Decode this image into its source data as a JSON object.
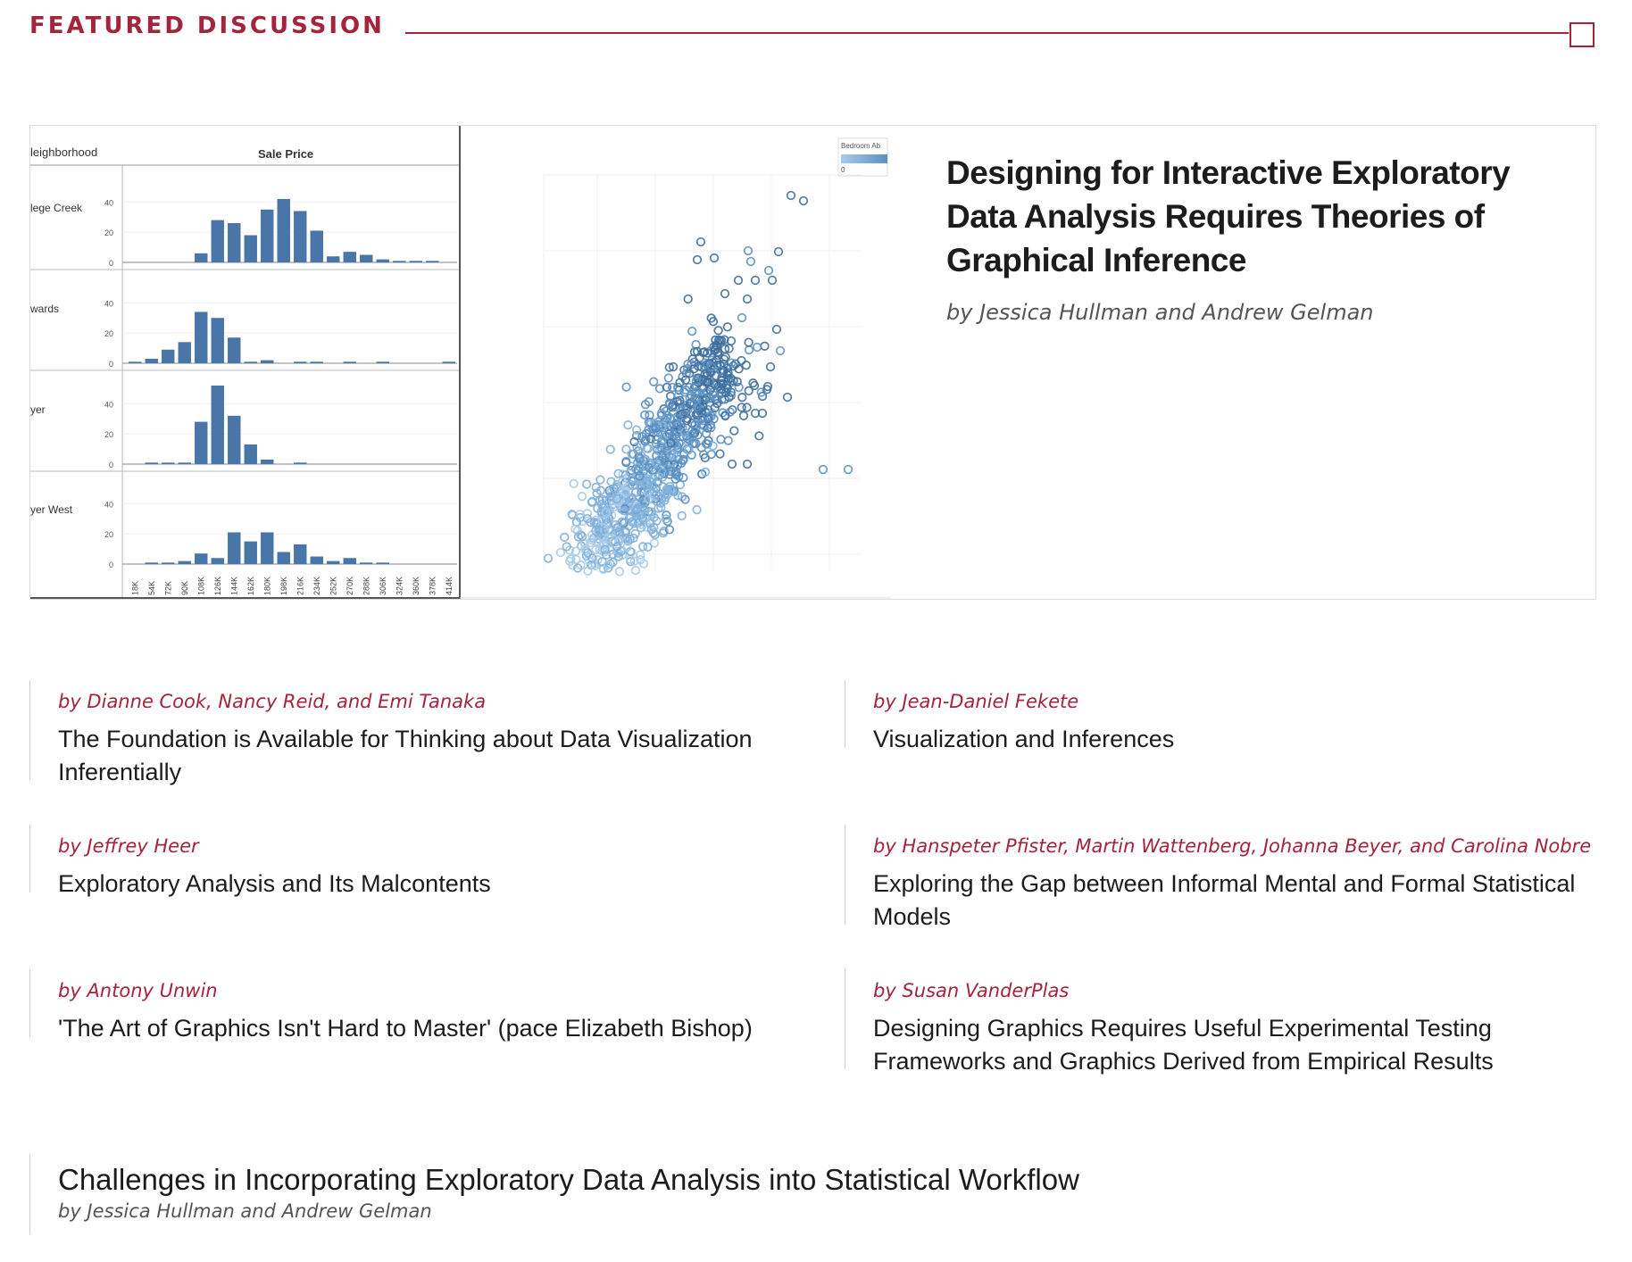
{
  "section": {
    "title": "FEATURED DISCUSSION"
  },
  "featured": {
    "title": "Designing for Interactive Exploratory Data Analysis Requires Theories of Graphical Inference",
    "byline": "by Jessica Hullman and Andrew Gelman",
    "figure": {
      "left_panel": {
        "column_header_left": "leighborhood",
        "column_header_right": "Sale Price",
        "rows": [
          {
            "label": "lege Creek",
            "y_ticks": [
              "40",
              "20",
              "0"
            ],
            "values": [
              0,
              0,
              0,
              0,
              6,
              28,
              26,
              18,
              35,
              42,
              34,
              21,
              4,
              7,
              5,
              2,
              1,
              1,
              1,
              0
            ]
          },
          {
            "label": "wards",
            "y_ticks": [
              "40",
              "20",
              "0"
            ],
            "values": [
              1,
              3,
              9,
              14,
              34,
              30,
              17,
              1,
              2,
              0,
              1,
              1,
              0,
              1,
              0,
              1,
              0,
              0,
              0,
              1
            ]
          },
          {
            "label": "yer",
            "y_ticks": [
              "40",
              "20",
              "0"
            ],
            "values": [
              0,
              1,
              1,
              1,
              28,
              52,
              32,
              13,
              3,
              0,
              1,
              0,
              0,
              0,
              0,
              0,
              0,
              0,
              0,
              0
            ]
          },
          {
            "label": "yer West",
            "y_ticks": [
              "40",
              "20",
              "0"
            ],
            "values": [
              0,
              1,
              1,
              2,
              7,
              4,
              21,
              15,
              21,
              8,
              13,
              5,
              2,
              4,
              1,
              1,
              0,
              0,
              0,
              0
            ]
          }
        ],
        "x_ticks": [
          "18K",
          "54K",
          "72K",
          "90K",
          "108K",
          "126K",
          "144K",
          "162K",
          "180K",
          "198K",
          "216K",
          "234K",
          "252K",
          "270K",
          "288K",
          "306K",
          "324K",
          "360K",
          "378K",
          "414K"
        ]
      },
      "right_panel": {
        "legend_title": "Bedroom Ab",
        "legend_value": "0",
        "colors": [
          "#a8cbe8",
          "#7fb0da",
          "#5b90c2",
          "#3e6f9e"
        ]
      },
      "bar_color": "#4a75a8"
    }
  },
  "articles": [
    {
      "byline": "by Dianne Cook, Nancy Reid, and Emi Tanaka",
      "title": "The Foundation is Available for Thinking about Data Visualization Inferentially"
    },
    {
      "byline": "by Jean-Daniel Fekete",
      "title": "Visualization and Inferences"
    },
    {
      "byline": "by Jeffrey Heer",
      "title": "Exploratory Analysis and Its Malcontents"
    },
    {
      "byline": "by Hanspeter Pfister, Martin Wattenberg, Johanna Beyer, and Carolina Nobre",
      "title": "Exploring the Gap between Informal Mental and Formal Statistical Models"
    },
    {
      "byline": "by Antony Unwin",
      "title": "'The Art of Graphics Isn't Hard to Master' (pace Elizabeth Bishop)"
    },
    {
      "byline": "by Susan VanderPlas",
      "title": "Designing Graphics Requires Useful Experimental Testing Frameworks and Graphics Derived from Empirical Results"
    }
  ],
  "last_article": {
    "title": "Challenges in Incorporating Exploratory Data Analysis into Statistical Workflow",
    "byline": "by Jessica Hullman and Andrew Gelman"
  },
  "colors": {
    "accent": "#a4243b"
  },
  "icons": {
    "collapse": "square-outline-icon"
  }
}
